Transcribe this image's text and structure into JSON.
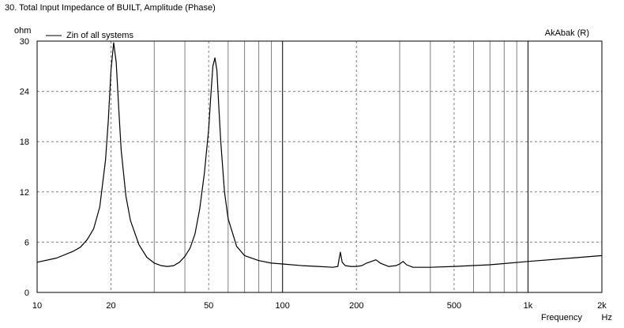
{
  "chart_data": {
    "type": "line",
    "title": "30. Total Input Impedance of BUILT, Amplitude (Phase)",
    "software_label": "AkAbak (R)",
    "ylabel": "ohm",
    "xlabel": "Frequency",
    "xunit": "Hz",
    "x_scale": "log",
    "xlim": [
      10,
      2000
    ],
    "ylim": [
      0,
      30
    ],
    "grid": true,
    "legend_position": "top-left",
    "x_ticks": [
      {
        "value": 10,
        "label": "10"
      },
      {
        "value": 20,
        "label": "20"
      },
      {
        "value": 50,
        "label": "50"
      },
      {
        "value": 100,
        "label": "100"
      },
      {
        "value": 200,
        "label": "200"
      },
      {
        "value": 500,
        "label": "500"
      },
      {
        "value": 1000,
        "label": "1k"
      },
      {
        "value": 2000,
        "label": "2k"
      }
    ],
    "y_ticks": [
      {
        "value": 0,
        "label": "0"
      },
      {
        "value": 6,
        "label": "6"
      },
      {
        "value": 12,
        "label": "12"
      },
      {
        "value": 18,
        "label": "18"
      },
      {
        "value": 24,
        "label": "24"
      },
      {
        "value": 30,
        "label": "30"
      }
    ],
    "colors": {
      "line": "#000000",
      "grid_major": "#000000",
      "grid_minor": "#808080"
    },
    "series": [
      {
        "name": "Zin of all systems",
        "x": [
          10,
          12,
          14,
          15,
          16,
          17,
          18,
          19,
          19.5,
          20,
          20.5,
          21,
          21.5,
          22,
          23,
          24,
          26,
          28,
          30,
          32,
          34,
          36,
          38,
          40,
          42,
          44,
          46,
          48,
          50,
          51,
          52,
          53,
          54,
          55,
          56,
          58,
          60,
          65,
          70,
          80,
          90,
          100,
          120,
          140,
          160,
          168,
          170,
          172,
          175,
          180,
          190,
          200,
          210,
          220,
          230,
          240,
          250,
          270,
          290,
          300,
          310,
          320,
          340,
          400,
          500,
          700,
          1000,
          1500,
          2000
        ],
        "y": [
          3.6,
          4.1,
          4.9,
          5.4,
          6.3,
          7.6,
          10.2,
          15.8,
          20.5,
          26.5,
          29.8,
          27.5,
          22.0,
          17.0,
          11.5,
          8.6,
          5.7,
          4.2,
          3.5,
          3.2,
          3.1,
          3.2,
          3.6,
          4.3,
          5.3,
          7.0,
          10.0,
          14.2,
          19.5,
          23.5,
          27.0,
          28.0,
          26.5,
          22.0,
          18.0,
          12.0,
          8.8,
          5.5,
          4.4,
          3.8,
          3.5,
          3.4,
          3.2,
          3.1,
          3.0,
          3.1,
          4.0,
          4.8,
          3.6,
          3.2,
          3.1,
          3.1,
          3.2,
          3.5,
          3.7,
          3.9,
          3.5,
          3.1,
          3.2,
          3.4,
          3.7,
          3.3,
          3.0,
          3.0,
          3.1,
          3.3,
          3.7,
          4.1,
          4.4
        ]
      }
    ]
  }
}
